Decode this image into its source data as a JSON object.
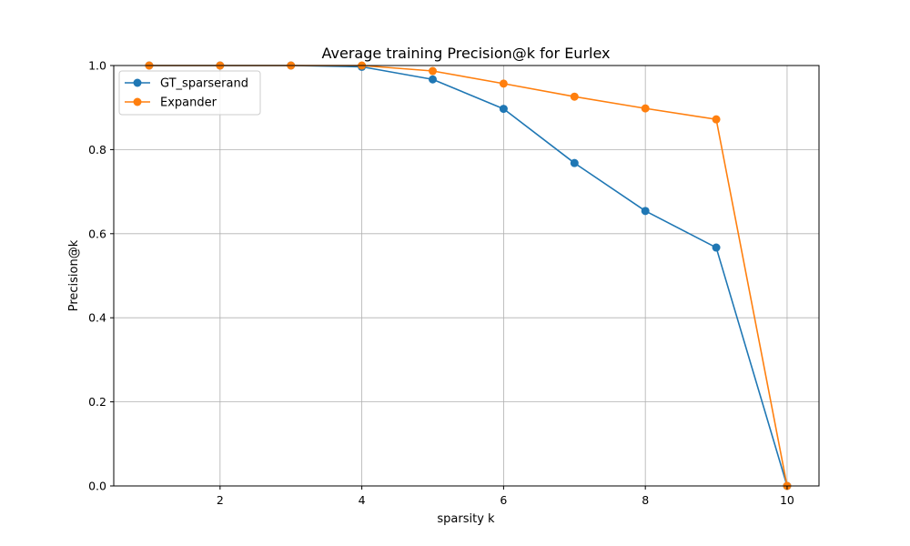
{
  "chart_data": {
    "type": "line",
    "title": "Average training  Precision@k for Eurlex",
    "xlabel": "sparsity k",
    "ylabel": "Precision@k",
    "xlim": [
      0.5,
      10.45
    ],
    "ylim": [
      0.0,
      1.0
    ],
    "x_ticks": [
      2,
      4,
      6,
      8,
      10
    ],
    "y_ticks": [
      0.0,
      0.2,
      0.4,
      0.6,
      0.8,
      1.0
    ],
    "x_tick_labels": [
      "2",
      "4",
      "6",
      "8",
      "10"
    ],
    "y_tick_labels": [
      "0.0",
      "0.2",
      "0.4",
      "0.6",
      "0.8",
      "1.0"
    ],
    "grid": true,
    "legend_position": "top-left",
    "x": [
      1,
      2,
      3,
      4,
      5,
      6,
      7,
      8,
      9,
      10
    ],
    "series": [
      {
        "name": "GT_sparserand",
        "color": "#1f77b4",
        "values": [
          1.0,
          1.0,
          1.0,
          0.997,
          0.967,
          0.897,
          0.768,
          0.654,
          0.567,
          0.0
        ]
      },
      {
        "name": "Expander",
        "color": "#ff7f0e",
        "values": [
          1.0,
          1.0,
          1.0,
          1.0,
          0.987,
          0.957,
          0.926,
          0.898,
          0.872,
          0.0
        ]
      }
    ]
  }
}
